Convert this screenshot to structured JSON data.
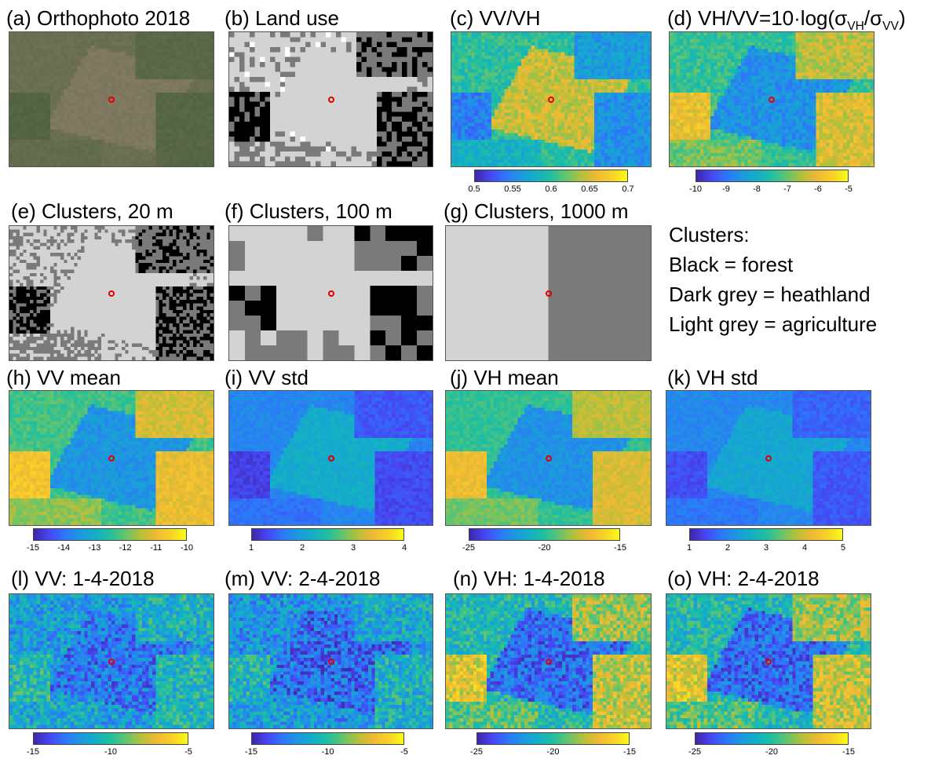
{
  "colors": {
    "marker": "#e00000",
    "forest": "#000000",
    "heathland": "#7a7a7a",
    "agriculture": "#d3d3d3",
    "other": "#ffffff"
  },
  "colormap": [
    "#3e26a8",
    "#4745f3",
    "#2d76fa",
    "#1e97e0",
    "#12afc7",
    "#21bf9f",
    "#64c46d",
    "#b5c03a",
    "#f0b934",
    "#f8d128",
    "#f9fb15"
  ],
  "panels": {
    "a": {
      "title": "(a) Orthophoto 2018"
    },
    "b": {
      "title": "(b) Land use"
    },
    "c": {
      "title": "(c) VV/VH",
      "cbar": [
        "0.5",
        "0.55",
        "0.6",
        "0.65",
        "0.7"
      ]
    },
    "d": {
      "title_main": "(d) VH/VV=10·log(σ",
      "sub1": "VH",
      "mid": "/σ",
      "sub2": "VV",
      "end": ")",
      "cbar": [
        "-10",
        "-9",
        "-8",
        "-7",
        "-6",
        "-5"
      ]
    },
    "e": {
      "title": "(e) Clusters, 20 m"
    },
    "f": {
      "title": "(f) Clusters, 100 m"
    },
    "g": {
      "title": "(g) Clusters, 1000 m"
    },
    "h": {
      "title": "(h) VV mean",
      "cbar": [
        "-15",
        "-14",
        "-13",
        "-12",
        "-11",
        "-10"
      ]
    },
    "i": {
      "title": "(i) VV std",
      "cbar": [
        "1",
        "2",
        "3",
        "4"
      ]
    },
    "j": {
      "title": "(j) VH mean",
      "cbar": [
        "-25",
        "-20",
        "-15"
      ]
    },
    "k": {
      "title": "(k) VH std",
      "cbar": [
        "1",
        "2",
        "3",
        "4",
        "5"
      ]
    },
    "l": {
      "title": "(l) VV: 1-4-2018",
      "cbar": [
        "-15",
        "-10",
        "-5"
      ]
    },
    "m": {
      "title": "(m) VV: 2-4-2018",
      "cbar": [
        "-15",
        "-10",
        "-5"
      ]
    },
    "n": {
      "title": "(n) VH: 1-4-2018",
      "cbar": [
        "-25",
        "-20",
        "-15"
      ]
    },
    "o": {
      "title": "(o) VH: 2-4-2018",
      "cbar": [
        "-25",
        "-20",
        "-15"
      ]
    }
  },
  "legend": {
    "heading": "Clusters:",
    "line1": "Black = forest",
    "line2": "Dark grey = heathland",
    "line3": "Light grey = agriculture"
  }
}
